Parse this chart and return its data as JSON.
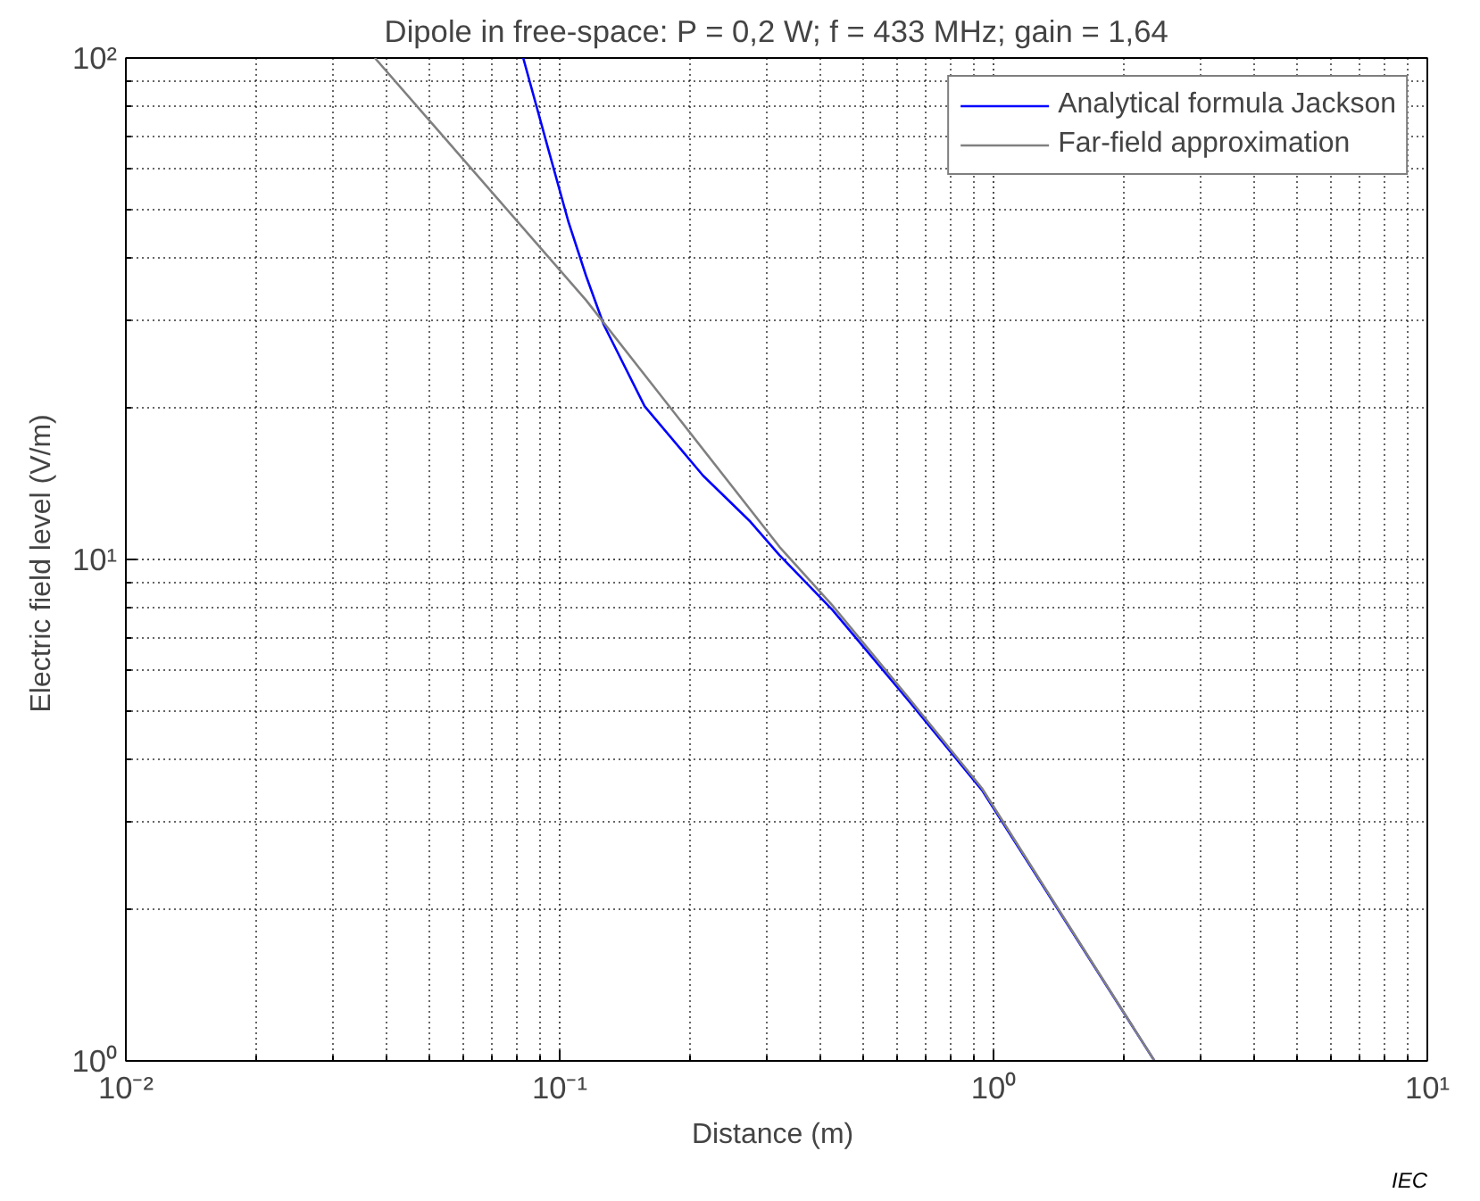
{
  "chart_data": {
    "type": "line",
    "title": "Dipole in free-space: P = 0,2 W; f = 433 MHz; gain = 1,64",
    "xlabel": "Distance  (m)",
    "ylabel": "Electric field level  (V/m)",
    "series": [
      {
        "name": "Analytical formula Jackson",
        "color": "#0000ff",
        "x": [
          0.0824,
          0.094,
          0.1047,
          0.115,
          0.1263,
          0.157,
          0.214,
          0.275,
          0.321,
          0.425,
          0.637,
          0.94,
          2.35
        ],
        "values": [
          100,
          66.1,
          47.2,
          36.8,
          29.4,
          20.2,
          14.7,
          11.9,
          10.2,
          7.94,
          5.23,
          3.47,
          1
        ]
      },
      {
        "name": "Far-field approximation",
        "color": "#808080",
        "x": [
          0.0375,
          0.115,
          0.321,
          0.425,
          0.637,
          0.94,
          2.35
        ],
        "values": [
          100,
          32.9,
          10.6,
          8.1,
          5.3,
          3.5,
          1
        ]
      }
    ],
    "log": "xy",
    "xlim": [
      0.01,
      10
    ],
    "ylim": [
      1,
      100
    ],
    "xticks": [
      {
        "value": 0.01,
        "label": "10⁻²"
      },
      {
        "value": 0.1,
        "label": "10⁻¹"
      },
      {
        "value": 1,
        "label": "10⁰"
      },
      {
        "value": 10,
        "label": "10¹"
      }
    ],
    "yticks": [
      {
        "value": 1,
        "label": "10⁰"
      },
      {
        "value": 10,
        "label": "10¹"
      },
      {
        "value": 100,
        "label": "10²"
      }
    ],
    "grid": true,
    "legend": "top right",
    "line_style": "solid",
    "marker": "none",
    "annotations": [
      "IEC"
    ]
  }
}
